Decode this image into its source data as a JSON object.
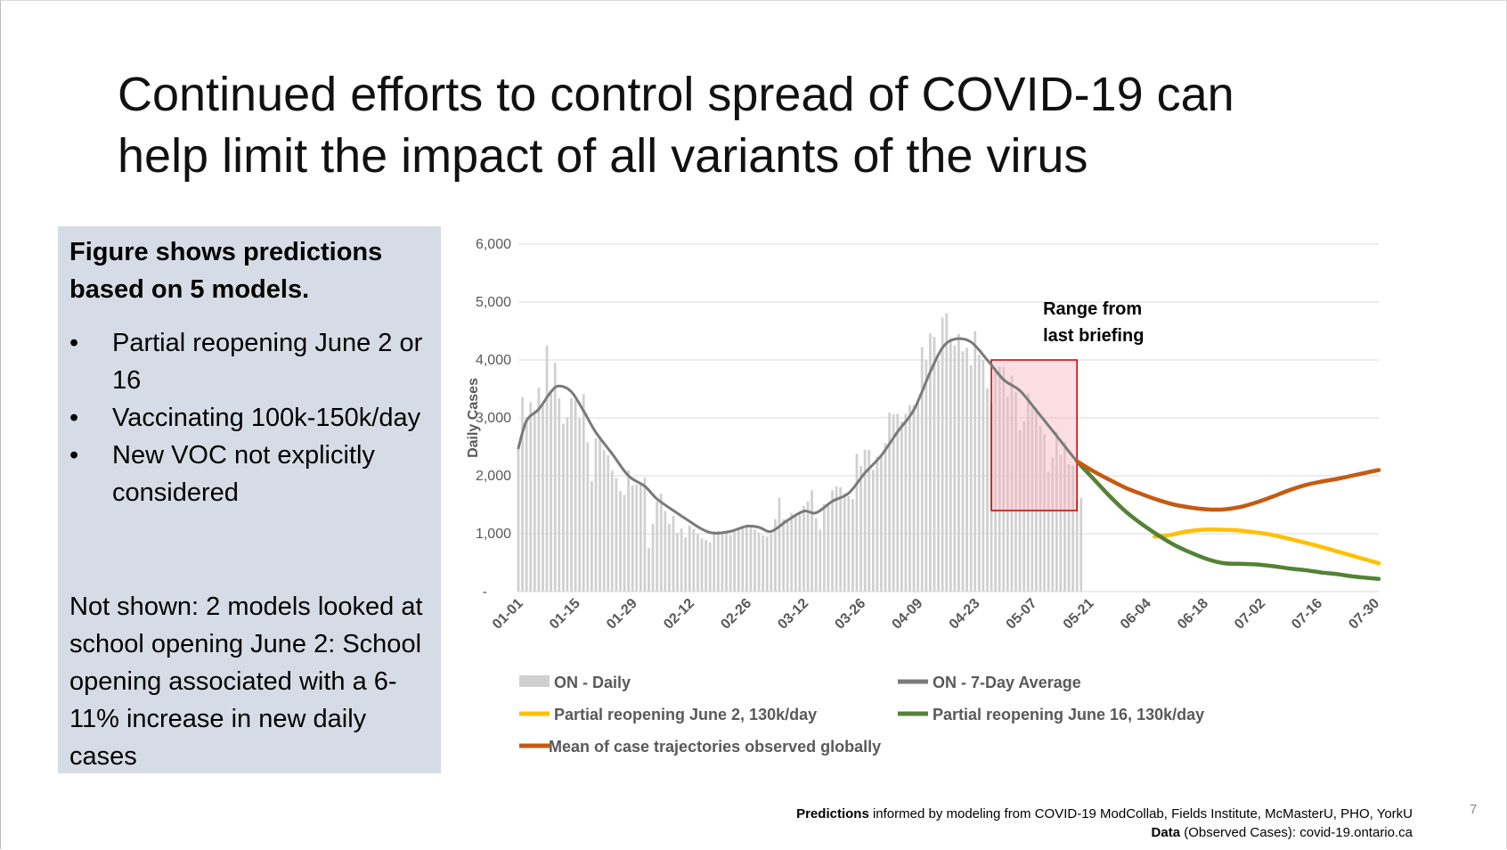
{
  "slide": {
    "title_line1": "Continued efforts to control spread of COVID-19 can",
    "title_line2": "help limit the impact of all variants of the virus",
    "page_number": "7"
  },
  "panel": {
    "heading": "Figure shows predictions based on 5 models.",
    "bullets": [
      "Partial reopening June 2 or 16",
      "Vaccinating 100k-150k/day",
      "New VOC not explicitly considered"
    ],
    "bullet_char": "•",
    "note": "Not shown: 2 models looked at school opening June 2: School opening associated with a 6-11% increase in new daily cases"
  },
  "footer": {
    "line1_bold": "Predictions",
    "line1_rest": " informed by modeling from COVID-19 ModCollab, Fields Institute, McMasterU, PHO, YorkU",
    "line2_bold": "Data",
    "line2_rest": " (Observed Cases): covid-19.ontario.ca"
  },
  "chart_data": {
    "type": "bar",
    "ylabel": "Daily Cases",
    "ylim": [
      0,
      6000
    ],
    "yticks": [
      0,
      1000,
      2000,
      3000,
      4000,
      5000,
      6000
    ],
    "ytick_labels": [
      "-",
      "1,000",
      "2,000",
      "3,000",
      "4,000",
      "5,000",
      "6,000"
    ],
    "day_range": [
      "01-01",
      "07-31"
    ],
    "xtick_labels": [
      "01-01",
      "01-15",
      "01-29",
      "02-12",
      "02-26",
      "03-12",
      "03-26",
      "04-09",
      "04-23",
      "05-07",
      "05-21",
      "06-04",
      "06-18",
      "07-02",
      "07-16",
      "07-30"
    ],
    "grid": true,
    "annotation": {
      "text_line1": "Range from",
      "text_line2": "last briefing",
      "x_range": [
        "04-27",
        "05-18"
      ],
      "y_range": [
        1400,
        4000
      ]
    },
    "daily_cases": {
      "name": "ON - Daily",
      "color": "#d0d0d0",
      "points": [
        [
          "01-01",
          2470
        ],
        [
          "01-02",
          3360
        ],
        [
          "01-03",
          3010
        ],
        [
          "01-04",
          3270
        ],
        [
          "01-05",
          3130
        ],
        [
          "01-06",
          3520
        ],
        [
          "01-07",
          3220
        ],
        [
          "01-08",
          4250
        ],
        [
          "01-09",
          3450
        ],
        [
          "01-10",
          3950
        ],
        [
          "01-11",
          3340
        ],
        [
          "01-12",
          2900
        ],
        [
          "01-13",
          3010
        ],
        [
          "01-14",
          3340
        ],
        [
          "01-15",
          3300
        ],
        [
          "01-16",
          2990
        ],
        [
          "01-17",
          3410
        ],
        [
          "01-18",
          2580
        ],
        [
          "01-19",
          1910
        ],
        [
          "01-20",
          2650
        ],
        [
          "01-21",
          2630
        ],
        [
          "01-22",
          2450
        ],
        [
          "01-23",
          2360
        ],
        [
          "01-24",
          2090
        ],
        [
          "01-25",
          1960
        ],
        [
          "01-26",
          1740
        ],
        [
          "01-27",
          1670
        ],
        [
          "01-28",
          2090
        ],
        [
          "01-29",
          1840
        ],
        [
          "01-30",
          1850
        ],
        [
          "01-31",
          1850
        ],
        [
          "02-01",
          1970
        ],
        [
          "02-02",
          750
        ],
        [
          "02-03",
          1170
        ],
        [
          "02-04",
          1560
        ],
        [
          "02-05",
          1690
        ],
        [
          "02-06",
          1390
        ],
        [
          "02-07",
          1170
        ],
        [
          "02-08",
          1310
        ],
        [
          "02-09",
          1020
        ],
        [
          "02-10",
          1090
        ],
        [
          "02-11",
          940
        ],
        [
          "02-12",
          1140
        ],
        [
          "02-13",
          1080
        ],
        [
          "02-14",
          990
        ],
        [
          "02-15",
          920
        ],
        [
          "02-16",
          890
        ],
        [
          "02-17",
          850
        ],
        [
          "02-18",
          1040
        ],
        [
          "02-19",
          1050
        ],
        [
          "02-20",
          1020
        ],
        [
          "02-21",
          1050
        ],
        [
          "02-22",
          980
        ],
        [
          "02-23",
          1060
        ],
        [
          "02-24",
          1090
        ],
        [
          "02-25",
          1130
        ],
        [
          "02-26",
          1160
        ],
        [
          "02-27",
          1150
        ],
        [
          "02-28",
          1070
        ],
        [
          "03-01",
          1020
        ],
        [
          "03-02",
          970
        ],
        [
          "03-03",
          950
        ],
        [
          "03-04",
          990
        ],
        [
          "03-05",
          1250
        ],
        [
          "03-06",
          1620
        ],
        [
          "03-07",
          1250
        ],
        [
          "03-08",
          1220
        ],
        [
          "03-09",
          1360
        ],
        [
          "03-10",
          1330
        ],
        [
          "03-11",
          1380
        ],
        [
          "03-12",
          1480
        ],
        [
          "03-13",
          1560
        ],
        [
          "03-14",
          1750
        ],
        [
          "03-15",
          1270
        ],
        [
          "03-16",
          1070
        ],
        [
          "03-17",
          1510
        ],
        [
          "03-18",
          1510
        ],
        [
          "03-19",
          1750
        ],
        [
          "03-20",
          1820
        ],
        [
          "03-21",
          1800
        ],
        [
          "03-22",
          1700
        ],
        [
          "03-23",
          1650
        ],
        [
          "03-24",
          1600
        ],
        [
          "03-25",
          2380
        ],
        [
          "03-26",
          2170
        ],
        [
          "03-27",
          2450
        ],
        [
          "03-28",
          2450
        ],
        [
          "03-29",
          2100
        ],
        [
          "03-30",
          2330
        ],
        [
          "03-31",
          2340
        ],
        [
          "04-01",
          2560
        ],
        [
          "04-02",
          3090
        ],
        [
          "04-03",
          3060
        ],
        [
          "04-04",
          3070
        ],
        [
          "04-05",
          2940
        ],
        [
          "04-06",
          3070
        ],
        [
          "04-07",
          3220
        ],
        [
          "04-08",
          3220
        ],
        [
          "04-09",
          3300
        ],
        [
          "04-10",
          4220
        ],
        [
          "04-11",
          3990
        ],
        [
          "04-12",
          4460
        ],
        [
          "04-13",
          4400
        ],
        [
          "04-14",
          3990
        ],
        [
          "04-15",
          4730
        ],
        [
          "04-16",
          4810
        ],
        [
          "04-17",
          4360
        ],
        [
          "04-18",
          4250
        ],
        [
          "04-19",
          4450
        ],
        [
          "04-20",
          4150
        ],
        [
          "04-21",
          4210
        ],
        [
          "04-22",
          3910
        ],
        [
          "04-23",
          4500
        ],
        [
          "04-24",
          4090
        ],
        [
          "04-25",
          4000
        ],
        [
          "04-26",
          3510
        ],
        [
          "04-27",
          3260
        ],
        [
          "04-28",
          3860
        ],
        [
          "04-29",
          3890
        ],
        [
          "04-30",
          3880
        ],
        [
          "05-01",
          3370
        ],
        [
          "05-02",
          3730
        ],
        [
          "05-03",
          3440
        ],
        [
          "05-04",
          2790
        ],
        [
          "05-05",
          2940
        ],
        [
          "05-06",
          3420
        ],
        [
          "05-07",
          3160
        ],
        [
          "05-08",
          3170
        ],
        [
          "05-09",
          2860
        ],
        [
          "05-10",
          2720
        ],
        [
          "05-11",
          2070
        ],
        [
          "05-12",
          2320
        ],
        [
          "05-13",
          2760
        ],
        [
          "05-14",
          2360
        ],
        [
          "05-15",
          2580
        ],
        [
          "05-16",
          2200
        ],
        [
          "05-17",
          2170
        ],
        [
          "05-18",
          1580
        ],
        [
          "05-19",
          1620
        ]
      ]
    },
    "series": [
      {
        "name": "ON - 7-Day Average",
        "color": "#7a7a7a",
        "points": [
          [
            "01-01",
            2480
          ],
          [
            "01-03",
            2950
          ],
          [
            "01-06",
            3150
          ],
          [
            "01-09",
            3450
          ],
          [
            "01-11",
            3550
          ],
          [
            "01-14",
            3450
          ],
          [
            "01-17",
            3120
          ],
          [
            "01-20",
            2750
          ],
          [
            "01-24",
            2380
          ],
          [
            "01-28",
            2000
          ],
          [
            "02-01",
            1820
          ],
          [
            "02-04",
            1600
          ],
          [
            "02-08",
            1400
          ],
          [
            "02-11",
            1260
          ],
          [
            "02-15",
            1080
          ],
          [
            "02-18",
            1010
          ],
          [
            "02-22",
            1040
          ],
          [
            "02-26",
            1130
          ],
          [
            "03-01",
            1110
          ],
          [
            "03-04",
            1040
          ],
          [
            "03-08",
            1230
          ],
          [
            "03-12",
            1390
          ],
          [
            "03-15",
            1360
          ],
          [
            "03-19",
            1560
          ],
          [
            "03-23",
            1700
          ],
          [
            "03-27",
            2050
          ],
          [
            "03-31",
            2350
          ],
          [
            "04-04",
            2760
          ],
          [
            "04-08",
            3140
          ],
          [
            "04-12",
            3790
          ],
          [
            "04-15",
            4210
          ],
          [
            "04-18",
            4360
          ],
          [
            "04-22",
            4310
          ],
          [
            "04-26",
            4000
          ],
          [
            "04-30",
            3660
          ],
          [
            "05-04",
            3470
          ],
          [
            "05-08",
            3130
          ],
          [
            "05-12",
            2780
          ],
          [
            "05-16",
            2420
          ],
          [
            "05-19",
            2160
          ]
        ]
      },
      {
        "name": "Partial reopening June 2, 130k/day",
        "color": "#ffc000",
        "points": [
          [
            "06-06",
            950
          ],
          [
            "06-10",
            980
          ],
          [
            "06-14",
            1040
          ],
          [
            "06-18",
            1070
          ],
          [
            "06-22",
            1070
          ],
          [
            "06-26",
            1060
          ],
          [
            "06-30",
            1030
          ],
          [
            "07-04",
            990
          ],
          [
            "07-08",
            930
          ],
          [
            "07-12",
            860
          ],
          [
            "07-16",
            790
          ],
          [
            "07-20",
            710
          ],
          [
            "07-24",
            630
          ],
          [
            "07-28",
            550
          ],
          [
            "07-31",
            490
          ]
        ]
      },
      {
        "name": "Partial reopening June 16, 130k/day",
        "color": "#548235",
        "points": [
          [
            "05-18",
            2250
          ],
          [
            "05-22",
            1950
          ],
          [
            "05-26",
            1650
          ],
          [
            "05-30",
            1380
          ],
          [
            "06-03",
            1160
          ],
          [
            "06-07",
            970
          ],
          [
            "06-11",
            800
          ],
          [
            "06-15",
            670
          ],
          [
            "06-19",
            560
          ],
          [
            "06-23",
            490
          ],
          [
            "06-27",
            480
          ],
          [
            "07-01",
            470
          ],
          [
            "07-05",
            440
          ],
          [
            "07-09",
            400
          ],
          [
            "07-13",
            370
          ],
          [
            "07-17",
            330
          ],
          [
            "07-21",
            300
          ],
          [
            "07-25",
            260
          ],
          [
            "07-31",
            220
          ]
        ]
      },
      {
        "name": "Mean of case trajectories observed globally",
        "color": "#c55a11",
        "points": [
          [
            "05-18",
            2250
          ],
          [
            "05-22",
            2080
          ],
          [
            "05-26",
            1930
          ],
          [
            "05-30",
            1790
          ],
          [
            "06-03",
            1680
          ],
          [
            "06-07",
            1580
          ],
          [
            "06-11",
            1500
          ],
          [
            "06-15",
            1450
          ],
          [
            "06-19",
            1420
          ],
          [
            "06-23",
            1420
          ],
          [
            "06-27",
            1460
          ],
          [
            "07-01",
            1540
          ],
          [
            "07-05",
            1640
          ],
          [
            "07-09",
            1750
          ],
          [
            "07-13",
            1840
          ],
          [
            "07-17",
            1900
          ],
          [
            "07-21",
            1950
          ],
          [
            "07-25",
            2010
          ],
          [
            "07-31",
            2100
          ]
        ]
      }
    ],
    "legend": [
      {
        "name": "ON - Daily",
        "color": "#d0d0d0",
        "kind": "bar"
      },
      {
        "name": "ON - 7-Day Average",
        "color": "#7a7a7a",
        "kind": "line"
      },
      {
        "name": "Partial reopening June 2, 130k/day",
        "color": "#ffc000",
        "kind": "line"
      },
      {
        "name": "Partial reopening June 16, 130k/day",
        "color": "#548235",
        "kind": "line"
      },
      {
        "name": "Mean of case trajectories observed globally",
        "color": "#c55a11",
        "kind": "line"
      }
    ],
    "legend_position": "bottom"
  }
}
